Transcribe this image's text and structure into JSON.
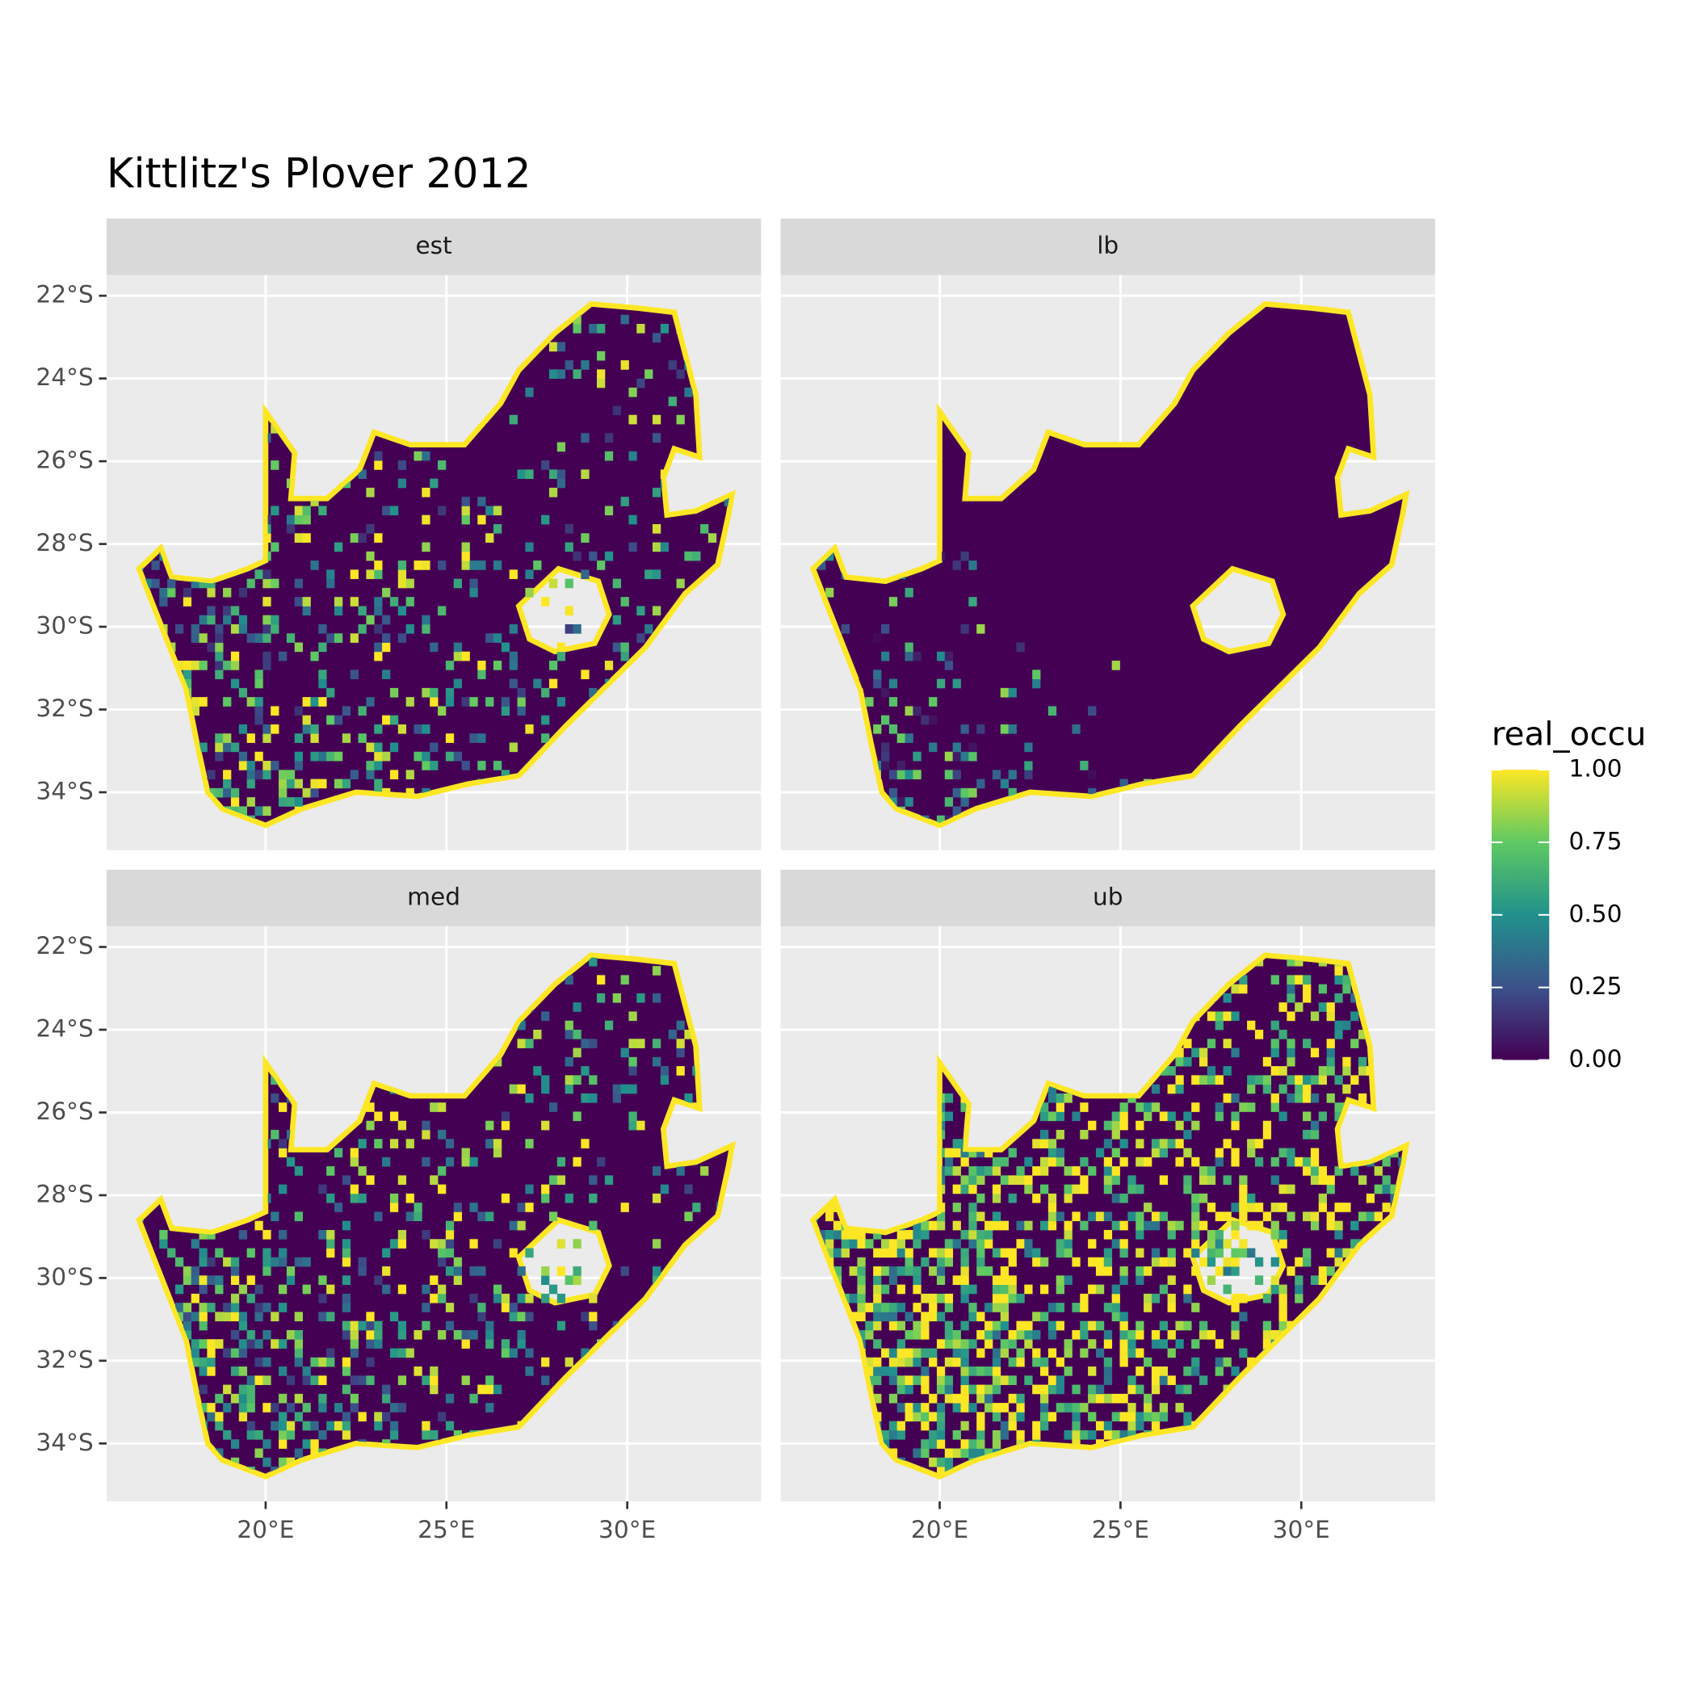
{
  "chart_data": {
    "type": "raster-map",
    "title": "Kittlitz's Plover 2012",
    "facets": [
      "est",
      "lb",
      "med",
      "ub"
    ],
    "xlim": [
      15.6,
      33.7
    ],
    "ylim": [
      -35.4,
      -21.5
    ],
    "xticks": [
      {
        "value": 20,
        "label": "20°E"
      },
      {
        "value": 25,
        "label": "25°E"
      },
      {
        "value": 30,
        "label": "30°E"
      }
    ],
    "yticks": [
      {
        "value": -22,
        "label": "22°S"
      },
      {
        "value": -24,
        "label": "24°S"
      },
      {
        "value": -26,
        "label": "26°S"
      },
      {
        "value": -28,
        "label": "28°S"
      },
      {
        "value": -30,
        "label": "30°S"
      },
      {
        "value": -32,
        "label": "32°S"
      },
      {
        "value": -34,
        "label": "34°S"
      }
    ],
    "grid": true,
    "legend": {
      "title": "real_occu",
      "lim": [
        0,
        1
      ],
      "ticks": [
        {
          "value": 0,
          "label": "0.00"
        },
        {
          "value": 0.25,
          "label": "0.25"
        },
        {
          "value": 0.5,
          "label": "0.50"
        },
        {
          "value": 0.75,
          "label": "0.75"
        },
        {
          "value": 1,
          "label": "1.00"
        }
      ],
      "colors": [
        "#440154",
        "#3b528b",
        "#21918c",
        "#5ec962",
        "#fde725"
      ]
    }
  }
}
